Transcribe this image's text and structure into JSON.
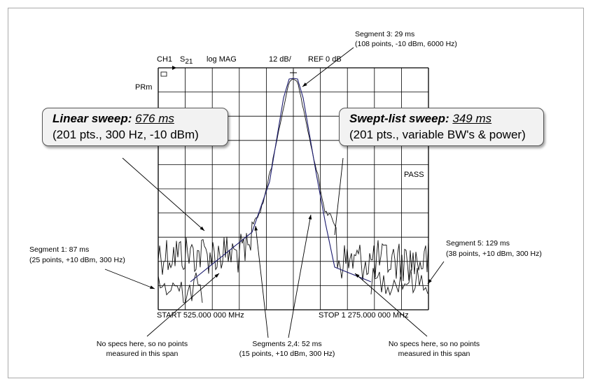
{
  "header": {
    "channel": "CH1",
    "param": "S",
    "param_sub": "21",
    "format": "log MAG",
    "scale": "12 dB/",
    "ref": "REF 0 dB",
    "marker_label": "PRm",
    "status": "PASS"
  },
  "axis": {
    "start": "START  525.000 000 MHz",
    "stop": "STOP 1 275.000 000 MHz"
  },
  "linear_box": {
    "title": "Linear sweep:",
    "time": "676 ms",
    "details": "(201 pts., 300 Hz, -10 dBm)"
  },
  "swept_box": {
    "title": "Swept-list sweep:",
    "time": "349 ms",
    "details": "(201 pts., variable BW's & power)"
  },
  "annotations": {
    "seg3_title": "Segment 3: 29 ms",
    "seg3_detail": "(108 points, -10 dBm, 6000 Hz)",
    "seg1_title": "Segment 1: 87 ms",
    "seg1_detail": "(25 points, +10 dBm, 300 Hz)",
    "seg5_title": "Segment 5: 129 ms",
    "seg5_detail": "(38 points, +10 dBm, 300 Hz)",
    "seg24_title": "Segments 2,4: 52 ms",
    "seg24_detail": "(15 points, +10 dBm, 300 Hz)",
    "nospec_left_1": "No specs here, so no points",
    "nospec_left_2": "measured in this span",
    "nospec_right_1": "No specs here, so no points",
    "nospec_right_2": "measured in this span"
  }
}
